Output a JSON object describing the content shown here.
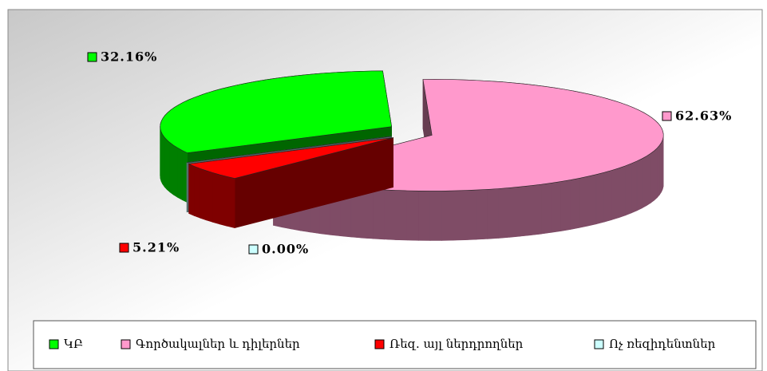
{
  "chart_data": {
    "type": "pie3d",
    "categories": [
      "ԿԲ",
      "Գործակալներ և դիլերներ",
      "Ռեզ. այլ ներդրողներ",
      "Ոչ ռեզիդենտներ"
    ],
    "values": [
      32.16,
      62.63,
      5.21,
      0
    ],
    "value_labels": [
      "32.16%",
      "62.63%",
      "5.21%",
      "0.00%"
    ],
    "colors": [
      "#00ff00",
      "#ff99cc",
      "#ff0000",
      "#ccffff"
    ],
    "legend": "bottom"
  }
}
